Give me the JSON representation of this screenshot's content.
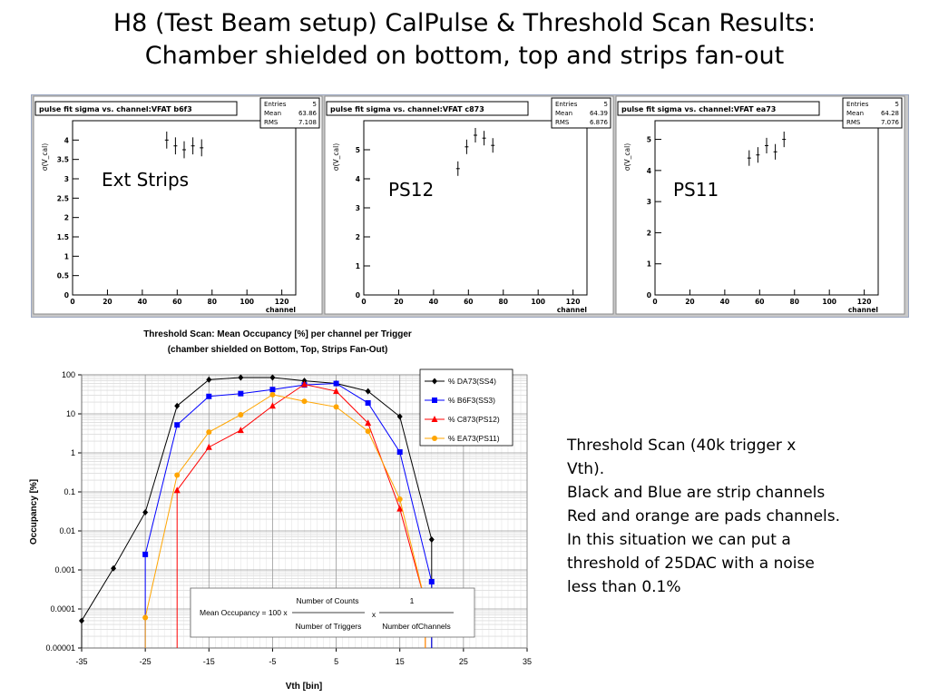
{
  "slide": {
    "title_line1": "H8 (Test Beam setup) CalPulse & Threshold Scan Results:",
    "title_line2": "Chamber shielded on bottom, top and strips fan-out"
  },
  "panels": [
    {
      "title": "pulse fit sigma vs. channel:VFAT b6f3",
      "label": "Ext Strips",
      "stats": [
        [
          "Entries",
          "5"
        ],
        [
          "Mean",
          "63.86"
        ],
        [
          "RMS",
          "7.108"
        ]
      ],
      "ylabel": "σ(V_cal)",
      "xlabel": "channel",
      "ylim": [
        0,
        4.5
      ],
      "yticks": [
        0,
        0.5,
        1,
        1.5,
        2,
        2.5,
        3,
        3.5,
        4
      ],
      "xlim": [
        0,
        128
      ],
      "xticks": [
        0,
        20,
        40,
        60,
        80,
        100,
        120
      ],
      "points": [
        [
          54,
          4.0,
          0.22
        ],
        [
          59,
          3.85,
          0.22
        ],
        [
          64,
          3.75,
          0.22
        ],
        [
          69,
          3.85,
          0.22
        ],
        [
          74,
          3.8,
          0.22
        ]
      ]
    },
    {
      "title": "pulse fit sigma vs. channel:VFAT c873",
      "label": "PS12",
      "stats": [
        [
          "Entries",
          "5"
        ],
        [
          "Mean",
          "64.39"
        ],
        [
          "RMS",
          "6.876"
        ]
      ],
      "ylabel": "σ(V_cal)",
      "xlabel": "channel",
      "ylim": [
        0,
        6
      ],
      "yticks": [
        0,
        1,
        2,
        3,
        4,
        5
      ],
      "xlim": [
        0,
        128
      ],
      "xticks": [
        0,
        20,
        40,
        60,
        80,
        100,
        120
      ],
      "points": [
        [
          54,
          4.35,
          0.25
        ],
        [
          59,
          5.1,
          0.25
        ],
        [
          64,
          5.5,
          0.25
        ],
        [
          69,
          5.4,
          0.25
        ],
        [
          74,
          5.15,
          0.25
        ]
      ]
    },
    {
      "title": "pulse fit sigma vs. channel:VFAT ea73",
      "label": "PS11",
      "stats": [
        [
          "Entries",
          "5"
        ],
        [
          "Mean",
          "64.28"
        ],
        [
          "RMS",
          "7.076"
        ]
      ],
      "ylabel": "σ(V_cal)",
      "xlabel": "channel",
      "ylim": [
        0,
        5.6
      ],
      "yticks": [
        0,
        1,
        2,
        3,
        4,
        5
      ],
      "xlim": [
        0,
        128
      ],
      "xticks": [
        0,
        20,
        40,
        60,
        80,
        100,
        120
      ],
      "points": [
        [
          54,
          4.4,
          0.25
        ],
        [
          59,
          4.5,
          0.25
        ],
        [
          64,
          4.8,
          0.25
        ],
        [
          69,
          4.6,
          0.25
        ],
        [
          74,
          5.0,
          0.25
        ]
      ]
    }
  ],
  "chart_data": {
    "type": "line",
    "title": "Threshold Scan: Mean Occupancy [%] per channel per Trigger",
    "subtitle": "(chamber shielded on Bottom, Top, Strips Fan-Out)",
    "xlabel": "Vth [bin]",
    "ylabel": "Occupancy [%]",
    "x_scale": "linear",
    "y_scale": "log",
    "xlim": [
      -35,
      35
    ],
    "ylim": [
      1e-05,
      100
    ],
    "xticks": [
      -35,
      -25,
      -15,
      -5,
      5,
      15,
      25,
      35
    ],
    "yticks": [
      "100",
      "10",
      "1",
      "0.1",
      "0.01",
      "0.001",
      "0.0001",
      "0.00001"
    ],
    "grid": true,
    "legend_position": "top-right",
    "series": [
      {
        "name": "% DA73(SS4)",
        "color": "#000000",
        "marker": "diamond",
        "x": [
          -35,
          -30,
          -25,
          -20,
          -15,
          -10,
          -5,
          0,
          5,
          10,
          15,
          20
        ],
        "y": [
          5e-05,
          0.0011,
          0.03,
          16,
          75,
          85,
          85,
          70,
          60,
          38,
          8.5,
          0.006
        ]
      },
      {
        "name": "% B6F3(SS3)",
        "color": "#0000ff",
        "marker": "square",
        "x": [
          -25,
          -20,
          -15,
          -10,
          -5,
          0,
          5,
          10,
          15,
          20
        ],
        "y": [
          0.0025,
          5.2,
          28,
          33,
          42,
          55,
          60,
          19,
          1.05,
          0.0005
        ]
      },
      {
        "name": "% C873(PS12)",
        "color": "#ff0000",
        "marker": "triangle",
        "x": [
          -20,
          -15,
          -10,
          -5,
          0,
          5,
          10,
          15,
          19
        ],
        "y": [
          0.11,
          1.4,
          3.8,
          16,
          57,
          38,
          5.8,
          0.037,
          0.00015
        ]
      },
      {
        "name": "% EA73(PS11)",
        "color": "#ffa500",
        "marker": "circle",
        "x": [
          -25,
          -20,
          -15,
          -10,
          -5,
          0,
          5,
          10,
          15,
          19
        ],
        "y": [
          6e-05,
          0.27,
          3.4,
          9.5,
          31,
          21,
          15,
          3.6,
          0.065,
          0.00015
        ]
      }
    ],
    "formula": {
      "lhs": "Mean Occupancy = 100 x",
      "num1": "Number of Counts",
      "den1": "Number of Triggers",
      "times": "x",
      "num2": "1",
      "den2": "Number ofChannels"
    }
  },
  "notes": [
    "Threshold Scan (40k trigger x",
    "Vth).",
    "Black and Blue are strip channels",
    "Red and orange are pads channels.",
    "In this situation we can put a",
    "threshold of 25DAC with a noise",
    "less than 0.1%"
  ]
}
